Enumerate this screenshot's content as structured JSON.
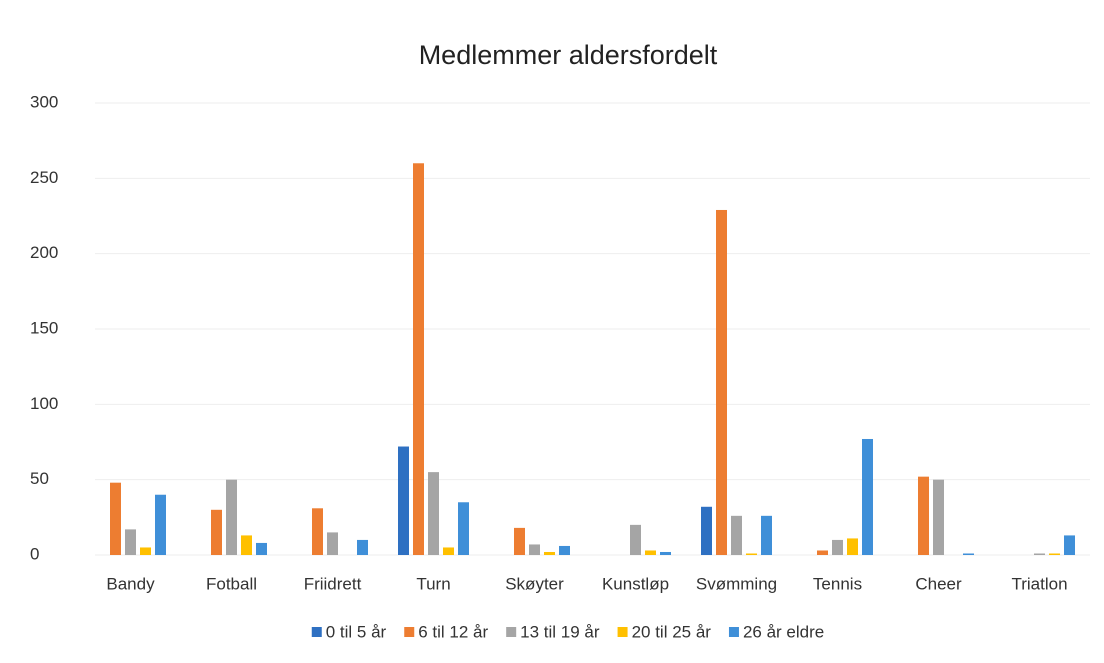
{
  "chart_data": {
    "type": "bar",
    "title": "Medlemmer aldersfordelt",
    "categories": [
      "Bandy",
      "Fotball",
      "Friidrett",
      "Turn",
      "Skøyter",
      "Kunstløp",
      "Svømming",
      "Tennis",
      "Cheer",
      "Triatlon"
    ],
    "series": [
      {
        "name": "0 til 5 år",
        "color": "#2e70c2",
        "values": [
          0,
          0,
          0,
          72,
          0,
          0,
          32,
          0,
          0,
          0
        ]
      },
      {
        "name": "6 til 12 år",
        "color": "#ed7d31",
        "values": [
          48,
          30,
          31,
          260,
          18,
          0,
          229,
          3,
          52,
          0
        ]
      },
      {
        "name": "13 til 19 år",
        "color": "#a5a5a5",
        "values": [
          17,
          50,
          15,
          55,
          7,
          20,
          26,
          10,
          50,
          1
        ]
      },
      {
        "name": "20 til 25 år",
        "color": "#ffc000",
        "values": [
          5,
          13,
          0,
          5,
          2,
          3,
          1,
          11,
          0,
          1
        ]
      },
      {
        "name": "26 år eldre",
        "color": "#3f8fd8",
        "values": [
          40,
          8,
          10,
          35,
          6,
          2,
          26,
          77,
          1,
          13
        ]
      }
    ],
    "ylim": [
      0,
      300
    ],
    "yticks": [
      0,
      50,
      100,
      150,
      200,
      250,
      300
    ],
    "grid": true,
    "legend": "bottom"
  }
}
